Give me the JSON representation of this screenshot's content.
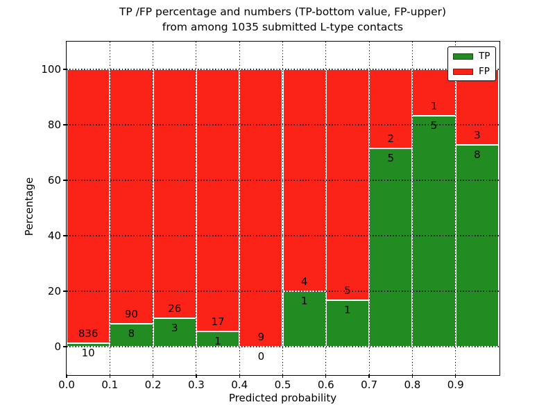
{
  "title": {
    "line1": "TP /FP percentage and numbers (TP-bottom value, FP-upper)",
    "line2": "from among 1035 submitted L-type contacts"
  },
  "chart_data": {
    "type": "bar",
    "stacked": true,
    "normalized_to_percent": true,
    "title": "TP /FP percentage and numbers (TP-bottom value, FP-upper) from among 1035 submitted L-type contacts",
    "xlabel": "Predicted probability",
    "ylabel": "Percentage",
    "xlim": [
      0.0,
      1.0
    ],
    "ylim": [
      -10,
      110
    ],
    "grid": true,
    "grid_style": "dotted",
    "legend_position": "upper right",
    "total_contacts": 1035,
    "bin_width": 0.1,
    "bins": [
      "0.0-0.1",
      "0.1-0.2",
      "0.2-0.3",
      "0.3-0.4",
      "0.4-0.5",
      "0.5-0.6",
      "0.6-0.7",
      "0.7-0.8",
      "0.8-0.9",
      "0.9-1.0"
    ],
    "series": [
      {
        "name": "TP",
        "color": "#228b22",
        "counts": [
          10,
          8,
          3,
          1,
          0,
          1,
          1,
          5,
          5,
          8
        ]
      },
      {
        "name": "FP",
        "color": "#fb2318",
        "counts": [
          836,
          90,
          26,
          17,
          9,
          4,
          5,
          2,
          1,
          3
        ]
      }
    ],
    "annotation_rule": "FP count above segment boundary, TP count below segment boundary",
    "xticks": [
      "0.0",
      "0.1",
      "0.2",
      "0.3",
      "0.4",
      "0.5",
      "0.6",
      "0.7",
      "0.8",
      "0.9"
    ],
    "yticks": [
      0,
      20,
      40,
      60,
      80,
      100
    ]
  },
  "colors": {
    "tp": "#228b22",
    "fp": "#fb2318",
    "text": "#000000",
    "background": "#ffffff"
  }
}
